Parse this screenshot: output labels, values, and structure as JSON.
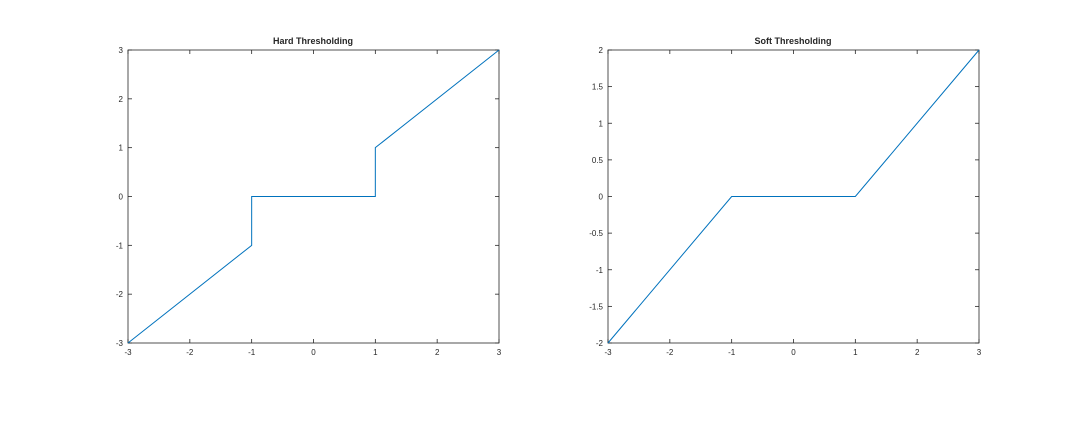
{
  "chart_data": [
    {
      "type": "line",
      "title": "Hard Thresholding",
      "xlabel": "",
      "ylabel": "",
      "xlim": [
        -3,
        3
      ],
      "ylim": [
        -3,
        3
      ],
      "xticks": [
        -3,
        -2,
        -1,
        0,
        1,
        2,
        3
      ],
      "yticks": [
        -3,
        -2,
        -1,
        0,
        1,
        2,
        3
      ],
      "xtick_labels": [
        "-3",
        "-2",
        "-1",
        "0",
        "1",
        "2",
        "3"
      ],
      "ytick_labels": [
        "-3",
        "-2",
        "-1",
        "0",
        "1",
        "2",
        "3"
      ],
      "grid": false,
      "series": [
        {
          "color": "#0072bd",
          "x": [
            -3,
            -1,
            -1,
            1,
            1,
            3
          ],
          "y": [
            -3,
            -1,
            0,
            0,
            1,
            3
          ]
        }
      ]
    },
    {
      "type": "line",
      "title": "Soft Thresholding",
      "xlabel": "",
      "ylabel": "",
      "xlim": [
        -3,
        3
      ],
      "ylim": [
        -2,
        2
      ],
      "xticks": [
        -3,
        -2,
        -1,
        0,
        1,
        2,
        3
      ],
      "yticks": [
        -2,
        -1.5,
        -1,
        -0.5,
        0,
        0.5,
        1,
        1.5,
        2
      ],
      "xtick_labels": [
        "-3",
        "-2",
        "-1",
        "0",
        "1",
        "2",
        "3"
      ],
      "ytick_labels": [
        "-2",
        "-1.5",
        "-1",
        "-0.5",
        "0",
        "0.5",
        "1",
        "1.5",
        "2"
      ],
      "grid": false,
      "series": [
        {
          "color": "#0072bd",
          "x": [
            -3,
            -1,
            1,
            3
          ],
          "y": [
            -2,
            0,
            0,
            2
          ]
        }
      ]
    }
  ]
}
